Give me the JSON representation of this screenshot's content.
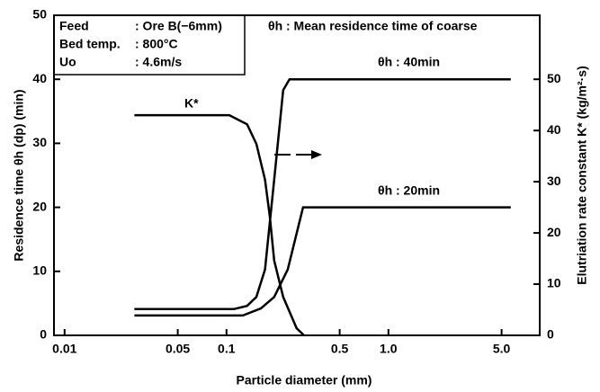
{
  "chart_data": {
    "type": "line",
    "xlabel": "Particle diameter  (mm)",
    "ylabel": "Residence time θh (dp)   (min)",
    "y2label": "Elutriation rate constant K* (kg/m²·s)",
    "xscale": "log",
    "xlim": [
      0.0086,
      8.6
    ],
    "xticks": [
      0.01,
      0.05,
      0.1,
      0.5,
      {
        "value": 1,
        "label": "1.0"
      },
      {
        "value": 5,
        "label": "5.0"
      }
    ],
    "ylim": [
      0,
      50
    ],
    "yticks": [
      0,
      10,
      20,
      30,
      40,
      50
    ],
    "y2lim": [
      0,
      62.5
    ],
    "y2ticks": [
      0,
      10,
      20,
      30,
      40,
      50
    ],
    "annotations": [
      "Feed",
      ": Ore B(−6mm)",
      "Bed temp.",
      ": 800°C",
      "Uo",
      ": 4.6m/s",
      "θh : Mean residence time of coarse"
    ],
    "series": [
      {
        "name": "θh : 40min",
        "color": "#000000",
        "x": [
          0.027,
          0.111,
          0.134,
          0.153,
          0.173,
          0.197,
          0.224,
          0.245,
          0.271,
          5.7
        ],
        "values": [
          4.1,
          4.1,
          4.6,
          6.0,
          10.3,
          24.3,
          38.3,
          40,
          40,
          40
        ]
      },
      {
        "name": "θh : 20min",
        "color": "#000000",
        "x": [
          0.027,
          0.126,
          0.163,
          0.197,
          0.239,
          0.271,
          0.297,
          5.7
        ],
        "values": [
          3.1,
          3.1,
          4.2,
          6.0,
          10.3,
          15.9,
          20,
          20
        ]
      },
      {
        "name": "K*",
        "color": "#000000",
        "axis": "y2",
        "x": [
          0.027,
          0.104,
          0.134,
          0.153,
          0.173,
          0.185,
          0.197,
          0.224,
          0.271,
          0.301
        ],
        "values": [
          43,
          43,
          41.2,
          37.4,
          30.4,
          23.3,
          14.6,
          7.5,
          1.4,
          0
        ]
      }
    ]
  }
}
